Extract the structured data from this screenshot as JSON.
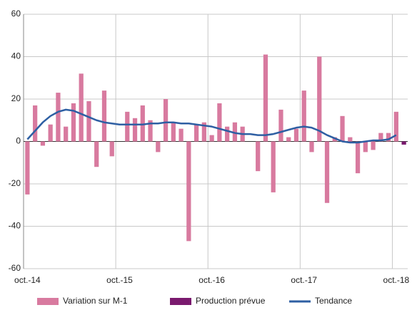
{
  "chart_data": {
    "type": "bar-line",
    "categories": [
      "oct.-14",
      null,
      null,
      null,
      null,
      null,
      null,
      null,
      null,
      null,
      null,
      null,
      "oct.-15",
      null,
      null,
      null,
      null,
      null,
      null,
      null,
      null,
      null,
      null,
      null,
      "oct.-16",
      null,
      null,
      null,
      null,
      null,
      null,
      null,
      null,
      null,
      null,
      null,
      "oct.-17",
      null,
      null,
      null,
      null,
      null,
      null,
      null,
      null,
      null,
      null,
      null,
      "oct.-18",
      null
    ],
    "series": [
      {
        "name": "Variation sur M-1",
        "kind": "bar",
        "color": "#d87a9f",
        "values": [
          -25,
          17,
          -2,
          8,
          23,
          7,
          18,
          32,
          19,
          -12,
          24,
          -7,
          0,
          14,
          11,
          17,
          10,
          -5,
          20,
          9,
          6,
          -47,
          8,
          9,
          3,
          18,
          7,
          9,
          7,
          0,
          -14,
          41,
          -24,
          15,
          2,
          6,
          24,
          -5,
          40,
          -29,
          2,
          12,
          2,
          -15,
          -5,
          -4,
          4,
          4,
          14,
          null
        ]
      },
      {
        "name": "Production prévue",
        "kind": "bar",
        "color": "#7a1a6e",
        "values": [
          null,
          null,
          null,
          null,
          null,
          null,
          null,
          null,
          null,
          null,
          null,
          null,
          null,
          null,
          null,
          null,
          null,
          null,
          null,
          null,
          null,
          null,
          null,
          null,
          null,
          null,
          null,
          null,
          null,
          null,
          null,
          null,
          null,
          null,
          null,
          null,
          null,
          null,
          null,
          null,
          null,
          null,
          null,
          null,
          null,
          null,
          null,
          null,
          null,
          -1.5
        ]
      },
      {
        "name": "Tendance",
        "kind": "line",
        "color": "#2e5fa3",
        "values": [
          1,
          5,
          9,
          12,
          14,
          15,
          14.5,
          13,
          11.5,
          10,
          9,
          8.5,
          8,
          8,
          8,
          8,
          8.5,
          8.5,
          9,
          9,
          8.5,
          8.5,
          8,
          7.5,
          7,
          6,
          5,
          4,
          3.5,
          3.5,
          3,
          3,
          3.5,
          4.5,
          5.5,
          6.5,
          7,
          6.5,
          5,
          3,
          1.5,
          0,
          -0.5,
          -0.5,
          0,
          0.5,
          0.5,
          1,
          3,
          null
        ]
      }
    ],
    "ylim": [
      -60,
      60
    ],
    "yticks": [
      -60,
      -40,
      -20,
      0,
      20,
      40,
      60
    ],
    "grid": true
  }
}
